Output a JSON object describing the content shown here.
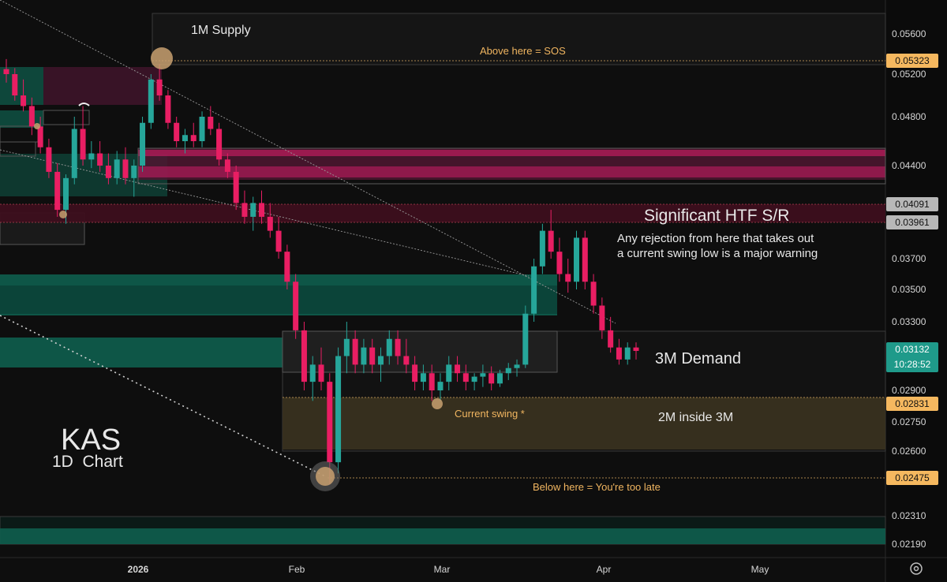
{
  "chart_data": {
    "type": "candlestick",
    "symbol": "KAS",
    "subtitle": "1D  Chart",
    "x_labels": [
      "2026",
      "Feb",
      "Mar",
      "Apr",
      "May"
    ],
    "y_ticks": [
      "0.05600",
      "0.05200",
      "0.04800",
      "0.04400",
      "0.03700",
      "0.03500",
      "0.03300",
      "0.02900",
      "0.02750",
      "0.02600",
      "0.02310",
      "0.02190"
    ],
    "price_tags": [
      {
        "text": "0.05323",
        "style": "gold"
      },
      {
        "text": "0.04091",
        "style": "grey"
      },
      {
        "text": "0.03961",
        "style": "grey"
      },
      {
        "text": "0.03132",
        "style": "teal",
        "sub": "10:28:52"
      },
      {
        "text": "0.02831",
        "style": "gold"
      },
      {
        "text": "0.02475",
        "style": "gold"
      }
    ],
    "annotations": {
      "supply": "1M Supply",
      "sos": "Above here = SOS",
      "htf": "Significant HTF S/R",
      "warning_line1": "Any rejection from here that takes out",
      "warning_line2": "a current swing low is a major warning",
      "demand": "3M Demand",
      "inner": "2M inside 3M",
      "swing": "Current swing *",
      "late": "Below here = You're too late"
    },
    "ohlc_approx": [
      [
        0.0525,
        0.0535,
        0.0512,
        0.052
      ],
      [
        0.052,
        0.0526,
        0.0495,
        0.05
      ],
      [
        0.05,
        0.0515,
        0.0485,
        0.049
      ],
      [
        0.049,
        0.0498,
        0.0465,
        0.0472
      ],
      [
        0.0472,
        0.048,
        0.045,
        0.0455
      ],
      [
        0.0455,
        0.0462,
        0.043,
        0.0435
      ],
      [
        0.0435,
        0.0442,
        0.04,
        0.0405
      ],
      [
        0.0405,
        0.0433,
        0.0395,
        0.043
      ],
      [
        0.043,
        0.048,
        0.0425,
        0.047
      ],
      [
        0.047,
        0.049,
        0.044,
        0.0445
      ],
      [
        0.0445,
        0.046,
        0.0438,
        0.045
      ],
      [
        0.045,
        0.046,
        0.0435,
        0.044
      ],
      [
        0.044,
        0.045,
        0.0425,
        0.043
      ],
      [
        0.043,
        0.0452,
        0.0425,
        0.0445
      ],
      [
        0.0445,
        0.0455,
        0.0425,
        0.043
      ],
      [
        0.043,
        0.0445,
        0.0415,
        0.044
      ],
      [
        0.044,
        0.048,
        0.0435,
        0.0475
      ],
      [
        0.0475,
        0.052,
        0.047,
        0.0515
      ],
      [
        0.0515,
        0.053,
        0.0495,
        0.05
      ],
      [
        0.05,
        0.0505,
        0.047,
        0.0475
      ],
      [
        0.0475,
        0.048,
        0.0455,
        0.046
      ],
      [
        0.046,
        0.047,
        0.045,
        0.0465
      ],
      [
        0.0465,
        0.0475,
        0.0455,
        0.046
      ],
      [
        0.046,
        0.0485,
        0.0455,
        0.048
      ],
      [
        0.048,
        0.049,
        0.0465,
        0.047
      ],
      [
        0.047,
        0.0475,
        0.044,
        0.0445
      ],
      [
        0.0445,
        0.045,
        0.043,
        0.0435
      ],
      [
        0.0435,
        0.044,
        0.0405,
        0.041
      ],
      [
        0.041,
        0.042,
        0.0395,
        0.04
      ],
      [
        0.04,
        0.0415,
        0.039,
        0.041
      ],
      [
        0.041,
        0.042,
        0.0395,
        0.04
      ],
      [
        0.04,
        0.041,
        0.0385,
        0.039
      ],
      [
        0.039,
        0.04,
        0.037,
        0.0375
      ],
      [
        0.0375,
        0.038,
        0.035,
        0.0355
      ],
      [
        0.0355,
        0.036,
        0.032,
        0.0325
      ],
      [
        0.0325,
        0.033,
        0.029,
        0.0295
      ],
      [
        0.0295,
        0.031,
        0.0285,
        0.0305
      ],
      [
        0.0305,
        0.0315,
        0.029,
        0.0295
      ],
      [
        0.0295,
        0.03,
        0.0245,
        0.0255
      ],
      [
        0.0255,
        0.0315,
        0.025,
        0.031
      ],
      [
        0.031,
        0.033,
        0.03,
        0.032
      ],
      [
        0.032,
        0.0325,
        0.03,
        0.0305
      ],
      [
        0.0305,
        0.032,
        0.03,
        0.0315
      ],
      [
        0.0315,
        0.032,
        0.03,
        0.0305
      ],
      [
        0.0305,
        0.0315,
        0.0295,
        0.031
      ],
      [
        0.031,
        0.0325,
        0.0305,
        0.032
      ],
      [
        0.032,
        0.0325,
        0.0305,
        0.031
      ],
      [
        0.031,
        0.032,
        0.03,
        0.0305
      ],
      [
        0.0305,
        0.031,
        0.029,
        0.0295
      ],
      [
        0.0295,
        0.0305,
        0.029,
        0.03
      ],
      [
        0.03,
        0.0305,
        0.0285,
        0.029
      ],
      [
        0.029,
        0.03,
        0.0285,
        0.0295
      ],
      [
        0.0295,
        0.031,
        0.029,
        0.0305
      ],
      [
        0.0305,
        0.031,
        0.0295,
        0.03
      ],
      [
        0.03,
        0.0305,
        0.029,
        0.0295
      ],
      [
        0.0295,
        0.03,
        0.029,
        0.0298
      ],
      [
        0.0298,
        0.0305,
        0.0292,
        0.03
      ],
      [
        0.03,
        0.0304,
        0.029,
        0.0294
      ],
      [
        0.0294,
        0.0302,
        0.0292,
        0.03
      ],
      [
        0.03,
        0.0306,
        0.0296,
        0.0303
      ],
      [
        0.0303,
        0.0308,
        0.0298,
        0.0305
      ],
      [
        0.0305,
        0.034,
        0.0303,
        0.0335
      ],
      [
        0.0335,
        0.037,
        0.033,
        0.0365
      ],
      [
        0.0365,
        0.0395,
        0.036,
        0.039
      ],
      [
        0.039,
        0.0405,
        0.037,
        0.0375
      ],
      [
        0.0375,
        0.0385,
        0.0355,
        0.036
      ],
      [
        0.036,
        0.037,
        0.0348,
        0.0355
      ],
      [
        0.0355,
        0.039,
        0.035,
        0.0385
      ],
      [
        0.0385,
        0.039,
        0.035,
        0.0355
      ],
      [
        0.0355,
        0.036,
        0.0335,
        0.034
      ],
      [
        0.034,
        0.0345,
        0.032,
        0.0325
      ],
      [
        0.0325,
        0.0333,
        0.0312,
        0.0315
      ],
      [
        0.0315,
        0.032,
        0.0305,
        0.0308
      ],
      [
        0.0308,
        0.0318,
        0.0305,
        0.0315
      ],
      [
        0.0315,
        0.0318,
        0.0308,
        0.0313
      ]
    ]
  }
}
